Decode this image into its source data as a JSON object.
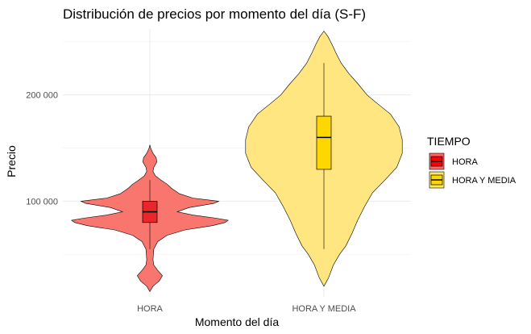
{
  "chart_data": {
    "type": "violin",
    "title": "Distribución de precios por momento del día (S-F)",
    "xlabel": "Momento del día",
    "ylabel": "Precio",
    "categories": [
      "HORA",
      "HORA Y MEDIA"
    ],
    "y_ticks": [
      {
        "value": 100000,
        "label": "100 000"
      },
      {
        "value": 200000,
        "label": "200 000"
      }
    ],
    "ylim": [
      10000,
      262000
    ],
    "grid": true,
    "legend": {
      "title": "TIEMPO",
      "position": "right",
      "items": [
        {
          "label": "HORA",
          "color": "#ff0000"
        },
        {
          "label": "HORA Y MEDIA",
          "color": "#ffd700"
        }
      ]
    },
    "series": [
      {
        "category": "HORA",
        "violin_fill": "#f8766d",
        "box_fill": "#e8262c",
        "box": {
          "q1": 80000,
          "median": 90000,
          "q3": 100000,
          "whisker_low": 55000,
          "whisker_high": 120000
        },
        "density": [
          [
            15000,
            0.0
          ],
          [
            20000,
            0.04
          ],
          [
            25000,
            0.12
          ],
          [
            30000,
            0.16
          ],
          [
            35000,
            0.1
          ],
          [
            40000,
            0.05
          ],
          [
            45000,
            0.04
          ],
          [
            55000,
            0.05
          ],
          [
            62000,
            0.1
          ],
          [
            68000,
            0.22
          ],
          [
            73000,
            0.45
          ],
          [
            77000,
            0.8
          ],
          [
            80000,
            0.96
          ],
          [
            82000,
            1.0
          ],
          [
            84000,
            0.85
          ],
          [
            87000,
            0.55
          ],
          [
            90000,
            0.35
          ],
          [
            94000,
            0.5
          ],
          [
            98000,
            0.82
          ],
          [
            100000,
            0.88
          ],
          [
            103000,
            0.55
          ],
          [
            107000,
            0.38
          ],
          [
            112000,
            0.28
          ],
          [
            116000,
            0.22
          ],
          [
            120000,
            0.14
          ],
          [
            124000,
            0.07
          ],
          [
            128000,
            0.04
          ],
          [
            132000,
            0.05
          ],
          [
            137000,
            0.09
          ],
          [
            141000,
            0.08
          ],
          [
            145000,
            0.04
          ],
          [
            150000,
            0.01
          ],
          [
            153000,
            0.0
          ]
        ]
      },
      {
        "category": "HORA Y MEDIA",
        "violin_fill": "#ffe680",
        "box_fill": "#ffd700",
        "box": {
          "q1": 130000,
          "median": 160000,
          "q3": 180000,
          "whisker_low": 55000,
          "whisker_high": 230000
        },
        "density": [
          [
            20000,
            0.0
          ],
          [
            28000,
            0.06
          ],
          [
            40000,
            0.12
          ],
          [
            50000,
            0.2
          ],
          [
            58000,
            0.28
          ],
          [
            70000,
            0.36
          ],
          [
            82000,
            0.43
          ],
          [
            95000,
            0.52
          ],
          [
            108000,
            0.62
          ],
          [
            120000,
            0.78
          ],
          [
            132000,
            0.93
          ],
          [
            145000,
            1.0
          ],
          [
            158000,
            1.0
          ],
          [
            170000,
            0.96
          ],
          [
            182000,
            0.85
          ],
          [
            192000,
            0.68
          ],
          [
            200000,
            0.55
          ],
          [
            210000,
            0.44
          ],
          [
            220000,
            0.32
          ],
          [
            230000,
            0.22
          ],
          [
            240000,
            0.15
          ],
          [
            248000,
            0.1
          ],
          [
            255000,
            0.05
          ],
          [
            260000,
            0.0
          ]
        ]
      }
    ]
  }
}
